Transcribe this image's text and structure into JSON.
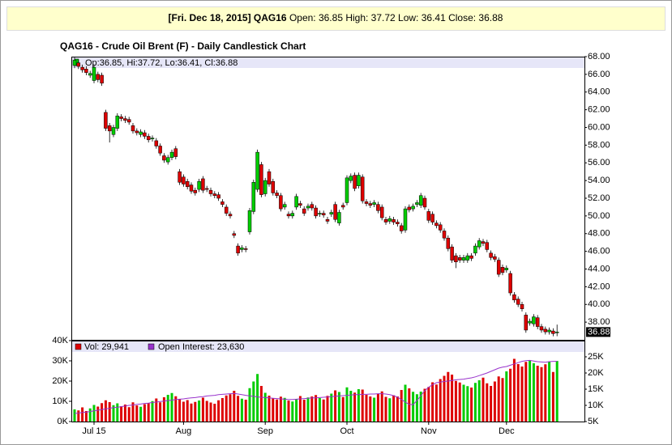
{
  "header": {
    "label": "[Fri. Dec 18, 2015] QAG16",
    "quote": "Open: 36.85 High: 37.72 Low: 36.41 Close: 36.88"
  },
  "chart_data": [
    {
      "type": "candlestick",
      "title": "QAG16 - Crude Oil Brent (F) - Daily Candlestick Chart",
      "legend": "Op:36.85, Hi:37.72, Lo:36.41, Cl:36.88",
      "last_label": "36.88",
      "up_color": "#00cc00",
      "down_color": "#dd0000",
      "ylim": [
        36,
        68
      ],
      "yticks": [
        {
          "value": 38,
          "label": "38.00"
        },
        {
          "value": 40,
          "label": "40.00"
        },
        {
          "value": 42,
          "label": "42.00"
        },
        {
          "value": 44,
          "label": "44.00"
        },
        {
          "value": 46,
          "label": "46.00"
        },
        {
          "value": 48,
          "label": "48.00"
        },
        {
          "value": 50,
          "label": "50.00"
        },
        {
          "value": 52,
          "label": "52.00"
        },
        {
          "value": 54,
          "label": "54.00"
        },
        {
          "value": 56,
          "label": "56.00"
        },
        {
          "value": 58,
          "label": "58.00"
        },
        {
          "value": 60,
          "label": "60.00"
        },
        {
          "value": 62,
          "label": "62.00"
        },
        {
          "value": 64,
          "label": "64.00"
        },
        {
          "value": 66,
          "label": "66.00"
        },
        {
          "value": 68,
          "label": "68.00"
        }
      ],
      "open": [
        67.0,
        67.3,
        66.8,
        66.6,
        65.9,
        65.3,
        66.0,
        65.9,
        61.7,
        60.2,
        59.2,
        59.9,
        61.2,
        61.0,
        60.9,
        60.2,
        59.6,
        59.2,
        59.4,
        59.0,
        58.7,
        58.5,
        57.9,
        56.8,
        56.1,
        56.6,
        57.6,
        55.0,
        54.4,
        53.9,
        53.5,
        52.9,
        53.0,
        54.2,
        53.1,
        52.9,
        52.5,
        52.4,
        51.6,
        51.0,
        50.2,
        48.0,
        46.6,
        46.2,
        46.3,
        48.2,
        50.5,
        53.0,
        55.8,
        52.5,
        55.0,
        53.9,
        52.6,
        52.3,
        51.0,
        50.2,
        50.0,
        51.0,
        51.4,
        50.8,
        50.9,
        51.3,
        50.9,
        50.2,
        50.3,
        49.6,
        50.2,
        51.3,
        49.2,
        51.2,
        51.5,
        54.0,
        54.6,
        53.4,
        54.4,
        51.6,
        51.4,
        51.3,
        51.3,
        51.0,
        49.6,
        49.4,
        49.6,
        49.3,
        48.9,
        48.4,
        51.0,
        50.8,
        51.3,
        51.2,
        52.0,
        50.5,
        50.2,
        49.2,
        49.0,
        48.3,
        47.5,
        46.5,
        45.5,
        45.3,
        45.0,
        45.0,
        45.5,
        45.8,
        46.5,
        47.1,
        47.0,
        45.8,
        45.4,
        45.0,
        44.2,
        43.9,
        43.5,
        41.1,
        40.6,
        40.0,
        38.8,
        37.9,
        37.8,
        38.5,
        37.5,
        37.2,
        36.9,
        37.0,
        36.85
      ],
      "high": [
        67.9,
        67.6,
        67.1,
        66.9,
        66.4,
        67.1,
        66.3,
        66.2,
        62.0,
        60.5,
        60.3,
        61.6,
        61.5,
        61.3,
        61.2,
        60.5,
        59.9,
        59.8,
        59.7,
        59.3,
        59.1,
        58.8,
        58.2,
        57.1,
        56.9,
        57.5,
        57.9,
        55.3,
        54.7,
        54.2,
        53.8,
        53.2,
        54.2,
        54.5,
        53.4,
        53.2,
        52.8,
        52.7,
        51.9,
        51.3,
        50.5,
        48.3,
        46.9,
        46.7,
        46.6,
        50.9,
        54.1,
        57.5,
        56.1,
        54.3,
        55.3,
        54.2,
        52.9,
        52.6,
        51.6,
        50.5,
        50.6,
        52.5,
        51.7,
        51.1,
        51.4,
        51.6,
        51.2,
        50.6,
        50.6,
        49.9,
        50.7,
        51.6,
        50.7,
        51.5,
        54.6,
        54.8,
        54.9,
        54.9,
        54.7,
        51.9,
        51.7,
        51.8,
        51.6,
        51.3,
        49.9,
        50.0,
        49.9,
        49.6,
        49.2,
        51.1,
        51.3,
        51.4,
        51.8,
        52.6,
        52.3,
        50.8,
        50.5,
        49.5,
        49.3,
        48.6,
        47.8,
        46.8,
        45.8,
        45.6,
        45.6,
        45.8,
        45.8,
        46.9,
        47.5,
        47.4,
        47.3,
        46.1,
        45.7,
        45.3,
        44.5,
        44.4,
        43.8,
        41.4,
        40.9,
        40.3,
        39.1,
        38.4,
        38.9,
        38.8,
        37.8,
        37.5,
        37.4,
        37.3,
        37.72
      ],
      "low": [
        66.7,
        66.6,
        66.2,
        65.9,
        65.6,
        65.0,
        65.1,
        64.7,
        59.6,
        58.3,
        58.9,
        59.6,
        60.7,
        60.5,
        60.3,
        59.3,
        59.1,
        58.9,
        58.7,
        58.3,
        58.4,
        57.6,
        56.8,
        56.0,
        55.8,
        56.3,
        56.4,
        53.5,
        53.3,
        53.0,
        52.5,
        52.3,
        52.7,
        52.6,
        52.7,
        52.2,
        52.0,
        51.7,
        51.0,
        50.0,
        49.7,
        47.5,
        45.5,
        45.9,
        45.9,
        47.9,
        50.2,
        52.7,
        52.1,
        52.2,
        53.3,
        52.3,
        52.0,
        50.5,
        50.7,
        49.7,
        49.7,
        50.7,
        50.9,
        50.0,
        50.6,
        50.6,
        49.7,
        49.9,
        49.8,
        49.1,
        49.9,
        49.3,
        48.9,
        50.7,
        51.2,
        53.7,
        52.8,
        53.1,
        51.4,
        51.1,
        50.9,
        51.0,
        50.3,
        49.5,
        49.0,
        49.1,
        49.0,
        48.8,
        48.0,
        48.1,
        50.4,
        50.5,
        51.0,
        50.9,
        50.7,
        49.2,
        49.0,
        48.6,
        48.1,
        47.2,
        46.0,
        44.7,
        44.1,
        44.7,
        44.7,
        44.7,
        44.9,
        45.5,
        46.2,
        46.6,
        45.9,
        45.0,
        44.8,
        43.1,
        43.3,
        43.6,
        41.0,
        40.2,
        39.7,
        39.2,
        36.8,
        37.6,
        37.5,
        37.2,
        36.8,
        36.6,
        36.6,
        36.4,
        36.41
      ],
      "close": [
        67.6,
        66.9,
        66.5,
        66.2,
        66.1,
        66.8,
        65.4,
        65.0,
        59.9,
        59.6,
        60.0,
        61.3,
        61.0,
        60.8,
        60.6,
        59.6,
        59.4,
        59.5,
        59.0,
        58.6,
        58.8,
        57.9,
        57.1,
        56.3,
        56.6,
        57.2,
        56.7,
        53.8,
        53.6,
        53.3,
        52.8,
        52.6,
        53.9,
        52.9,
        53.0,
        52.5,
        52.3,
        52.0,
        51.3,
        50.3,
        50.0,
        47.8,
        45.8,
        46.4,
        46.2,
        50.6,
        53.8,
        57.2,
        52.4,
        54.0,
        53.6,
        52.6,
        52.3,
        50.8,
        51.3,
        50.0,
        50.3,
        52.2,
        51.2,
        50.3,
        51.1,
        50.9,
        50.0,
        50.3,
        50.1,
        49.4,
        50.4,
        49.6,
        50.4,
        51.0,
        54.3,
        54.5,
        53.1,
        54.6,
        51.7,
        51.4,
        51.2,
        51.5,
        50.6,
        49.8,
        49.3,
        49.7,
        49.3,
        49.1,
        48.3,
        50.8,
        50.7,
        51.1,
        51.5,
        52.3,
        51.0,
        49.5,
        49.3,
        48.9,
        48.4,
        47.5,
        46.3,
        45.0,
        44.8,
        45.0,
        45.3,
        45.5,
        45.2,
        46.6,
        47.2,
        46.9,
        46.2,
        45.3,
        45.1,
        43.4,
        43.6,
        44.1,
        41.3,
        40.5,
        40.0,
        39.5,
        37.1,
        38.1,
        38.6,
        37.5,
        37.1,
        36.9,
        37.1,
        36.7,
        36.88
      ]
    },
    {
      "type": "bar",
      "categories": [
        null,
        null,
        null,
        null,
        null,
        "Jul 15",
        null,
        null,
        null,
        null,
        null,
        null,
        null,
        null,
        null,
        null,
        null,
        null,
        null,
        null,
        null,
        null,
        null,
        null,
        null,
        null,
        null,
        null,
        "Aug",
        null,
        null,
        null,
        null,
        null,
        null,
        null,
        null,
        null,
        null,
        null,
        null,
        null,
        null,
        null,
        null,
        null,
        null,
        null,
        null,
        "Sep",
        null,
        null,
        null,
        null,
        null,
        null,
        null,
        null,
        null,
        null,
        null,
        null,
        null,
        null,
        null,
        null,
        null,
        null,
        null,
        null,
        "Oct",
        null,
        null,
        null,
        null,
        null,
        null,
        null,
        null,
        null,
        null,
        null,
        null,
        null,
        null,
        null,
        null,
        null,
        null,
        null,
        null,
        "Nov",
        null,
        null,
        null,
        null,
        null,
        null,
        null,
        null,
        null,
        null,
        null,
        null,
        null,
        null,
        null,
        null,
        null,
        null,
        null,
        "Dec",
        null,
        null,
        null,
        null,
        null,
        null,
        null,
        null,
        null,
        null,
        null,
        null,
        null
      ],
      "ylim": [
        0,
        40000
      ],
      "yticks": [
        {
          "value": 0,
          "label": "0K"
        },
        {
          "value": 10000,
          "label": "10K"
        },
        {
          "value": 20000,
          "label": "20K"
        },
        {
          "value": 30000,
          "label": "30K"
        },
        {
          "value": 40000,
          "label": "40K"
        }
      ],
      "y2lim": [
        5000,
        30000
      ],
      "y2ticks": [
        {
          "value": 5000,
          "label": "5K"
        },
        {
          "value": 10000,
          "label": "10K"
        },
        {
          "value": 15000,
          "label": "15K"
        },
        {
          "value": 20000,
          "label": "20K"
        },
        {
          "value": 25000,
          "label": "25K"
        }
      ],
      "series": [
        {
          "name": "Vol: 29,941",
          "color": "#dd0000",
          "values": [
            6000,
            5500,
            7000,
            5200,
            6500,
            8200,
            7400,
            9100,
            10500,
            9600,
            8100,
            9000,
            7600,
            8400,
            7100,
            9500,
            8000,
            7300,
            8600,
            9200,
            10100,
            11400,
            9500,
            12000,
            13200,
            14100,
            12500,
            11000,
            9800,
            10600,
            8900,
            9700,
            10400,
            11800,
            10200,
            9400,
            8800,
            10500,
            11600,
            12900,
            13500,
            15200,
            12700,
            11300,
            10800,
            16500,
            19800,
            23500,
            17600,
            14200,
            12800,
            11500,
            10900,
            12300,
            11700,
            10400,
            9900,
            11200,
            12600,
            10800,
            11900,
            12400,
            13100,
            11600,
            10900,
            12700,
            13800,
            15400,
            14600,
            12100,
            16900,
            15200,
            14300,
            16000,
            15800,
            13200,
            12400,
            11800,
            13600,
            14900,
            12200,
            11500,
            13000,
            12400,
            15600,
            18200,
            16400,
            14700,
            13500,
            14800,
            16200,
            17100,
            19400,
            18300,
            21000,
            22600,
            24500,
            23200,
            20100,
            19300,
            18200,
            17500,
            16800,
            19100,
            20400,
            21700,
            18900,
            17600,
            19800,
            22300,
            21500,
            24800,
            26100,
            31000,
            28400,
            27200,
            29500,
            30200,
            28800,
            27600,
            26900,
            28300,
            29700,
            24500,
            29941
          ]
        },
        {
          "name": "Open Interest: 23,630",
          "color": "#9933cc",
          "axis": "y2",
          "type": "line",
          "values": [
            7500,
            7600,
            7800,
            7900,
            8100,
            8300,
            8500,
            8700,
            8900,
            9100,
            9300,
            9400,
            9600,
            9800,
            10000,
            10100,
            10300,
            10400,
            10600,
            10700,
            10900,
            11000,
            11200,
            11300,
            11500,
            11600,
            11800,
            11900,
            12000,
            12200,
            12300,
            12400,
            12600,
            12700,
            12900,
            13000,
            13100,
            13300,
            13400,
            13500,
            13600,
            13700,
            13500,
            13300,
            13100,
            12900,
            12800,
            12600,
            12500,
            12400,
            12300,
            12200,
            12100,
            12000,
            11900,
            11800,
            11800,
            11900,
            12000,
            12100,
            12200,
            12300,
            12300,
            12400,
            12500,
            12600,
            12700,
            12800,
            12900,
            13000,
            13100,
            13200,
            13300,
            13300,
            13400,
            13400,
            13500,
            13500,
            13600,
            13600,
            13500,
            13300,
            13000,
            12500,
            11800,
            11000,
            10300,
            10200,
            11500,
            13000,
            14500,
            15600,
            16400,
            17000,
            17200,
            17400,
            17500,
            17700,
            17900,
            18000,
            18100,
            18300,
            18500,
            18800,
            19200,
            19600,
            20000,
            20500,
            21000,
            21500,
            21800,
            22000,
            22400,
            22800,
            23200,
            23600,
            23800,
            23900,
            23700,
            23500,
            23400,
            23300,
            23500,
            23600,
            23630
          ]
        }
      ]
    }
  ]
}
